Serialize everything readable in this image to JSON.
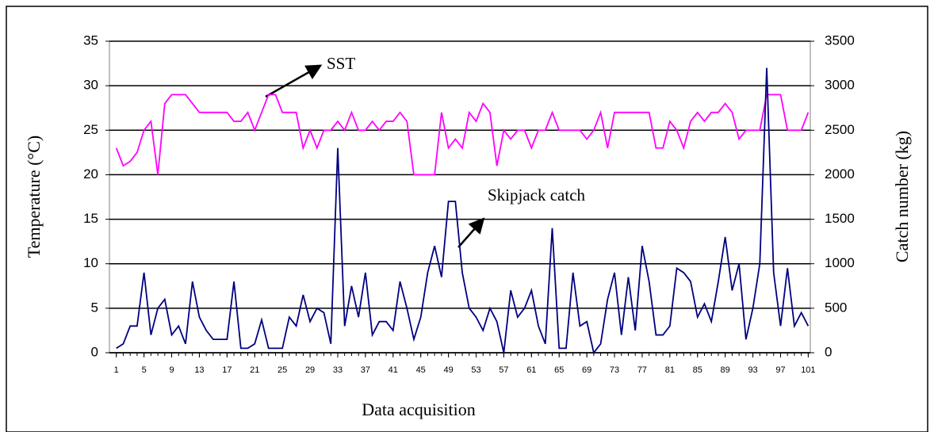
{
  "chart_data": {
    "type": "line",
    "y_label": "Temperature (°C)",
    "y2_label": "Catch number (kg)",
    "x_label": "Data acquisition",
    "annotations": [
      "SST",
      "Skipjack catch"
    ],
    "x": [
      1,
      2,
      3,
      4,
      5,
      6,
      7,
      8,
      9,
      10,
      11,
      12,
      13,
      14,
      15,
      16,
      17,
      18,
      19,
      20,
      21,
      22,
      23,
      24,
      25,
      26,
      27,
      28,
      29,
      30,
      31,
      32,
      33,
      34,
      35,
      36,
      37,
      38,
      39,
      40,
      41,
      42,
      43,
      44,
      45,
      46,
      47,
      48,
      49,
      50,
      51,
      52,
      53,
      54,
      55,
      56,
      57,
      58,
      59,
      60,
      61,
      62,
      63,
      64,
      65,
      66,
      67,
      68,
      69,
      70,
      71,
      72,
      73,
      74,
      75,
      76,
      77,
      78,
      79,
      80,
      81,
      82,
      83,
      84,
      85,
      86,
      87,
      88,
      89,
      90,
      91,
      92,
      93,
      94,
      95,
      96,
      97,
      98,
      99,
      100,
      101
    ],
    "xlim": [
      0,
      101.3
    ],
    "xticks": [
      1,
      5,
      9,
      13,
      17,
      21,
      25,
      29,
      33,
      37,
      41,
      45,
      49,
      53,
      57,
      61,
      65,
      69,
      73,
      77,
      81,
      85,
      89,
      93,
      97,
      101
    ],
    "ylim": [
      0,
      35
    ],
    "yticks": [
      0,
      5,
      10,
      15,
      20,
      25,
      30,
      35
    ],
    "y2lim": [
      0,
      3500
    ],
    "y2ticks": [
      0,
      500,
      1000,
      1500,
      2000,
      2500,
      3000,
      3500
    ],
    "grid": true,
    "series": [
      {
        "name": "SST",
        "color": "#ff00ff",
        "values": [
          23,
          21,
          21.5,
          22.5,
          25,
          26,
          20,
          28,
          29,
          29,
          29,
          28,
          27,
          27,
          27,
          27,
          27,
          26,
          26,
          27,
          25,
          27,
          29,
          29,
          27,
          27,
          27,
          23,
          25,
          23,
          25,
          25,
          26,
          25,
          27,
          25,
          25,
          26,
          25,
          26,
          26,
          27,
          26,
          20,
          20,
          20,
          20,
          27,
          23,
          24,
          23,
          27,
          26,
          28,
          27,
          21,
          25,
          24,
          25,
          25,
          23,
          25,
          25,
          27,
          25,
          25,
          25,
          25,
          24,
          25,
          27,
          23,
          27,
          27,
          27,
          27,
          27,
          27,
          23,
          23,
          26,
          25,
          23,
          26,
          27,
          26,
          27,
          27,
          28,
          27,
          24,
          25,
          25,
          25,
          29,
          29,
          29,
          25,
          25,
          25,
          27
        ]
      },
      {
        "name": "Skipjack catch",
        "color": "#000080",
        "axis": "y2",
        "values": [
          50,
          100,
          300,
          300,
          900,
          200,
          500,
          600,
          200,
          300,
          100,
          800,
          400,
          250,
          150,
          150,
          150,
          800,
          50,
          50,
          100,
          370,
          50,
          50,
          50,
          400,
          300,
          650,
          350,
          500,
          450,
          100,
          2300,
          300,
          750,
          400,
          900,
          200,
          350,
          350,
          250,
          800,
          500,
          150,
          400,
          900,
          1200,
          850,
          1700,
          1700,
          900,
          500,
          400,
          250,
          500,
          350,
          0,
          700,
          400,
          500,
          700,
          300,
          100,
          1400,
          50,
          50,
          900,
          300,
          350,
          0,
          100,
          600,
          900,
          200,
          850,
          250,
          1200,
          800,
          200,
          200,
          300,
          950,
          900,
          800,
          400,
          550,
          350,
          800,
          1300,
          700,
          1000,
          150,
          500,
          1000,
          3200,
          900,
          300,
          950,
          300,
          450,
          300
        ]
      }
    ]
  }
}
